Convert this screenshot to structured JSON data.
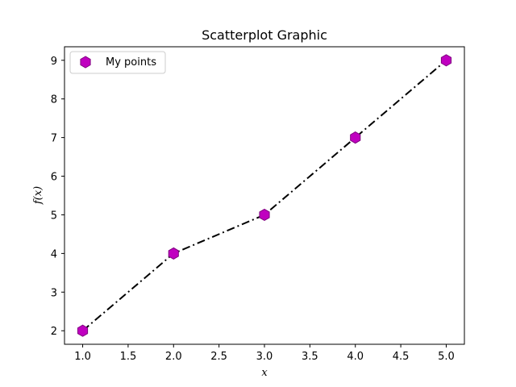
{
  "chart_data": {
    "type": "scatter",
    "title": "Scatterplot Graphic",
    "xlabel": "x",
    "ylabel": "f(x)",
    "xlim": [
      0.8,
      5.2
    ],
    "ylim": [
      1.65,
      9.35
    ],
    "xticks": [
      "1.0",
      "1.5",
      "2.0",
      "2.5",
      "3.0",
      "3.5",
      "4.0",
      "4.5",
      "5.0"
    ],
    "yticks": [
      "2",
      "3",
      "4",
      "5",
      "6",
      "7",
      "8",
      "9"
    ],
    "grid": false,
    "legend_position": "upper left",
    "series": [
      {
        "name": "My points",
        "marker": "hexagon",
        "color": "#c000c0",
        "x": [
          1,
          2,
          3,
          4,
          5
        ],
        "y": [
          2,
          4,
          5,
          7,
          9
        ]
      }
    ],
    "line": {
      "style": "dash-dot",
      "color": "#000000",
      "x": [
        1,
        2,
        3,
        4,
        5
      ],
      "y": [
        2,
        4,
        5,
        7,
        9
      ]
    }
  }
}
